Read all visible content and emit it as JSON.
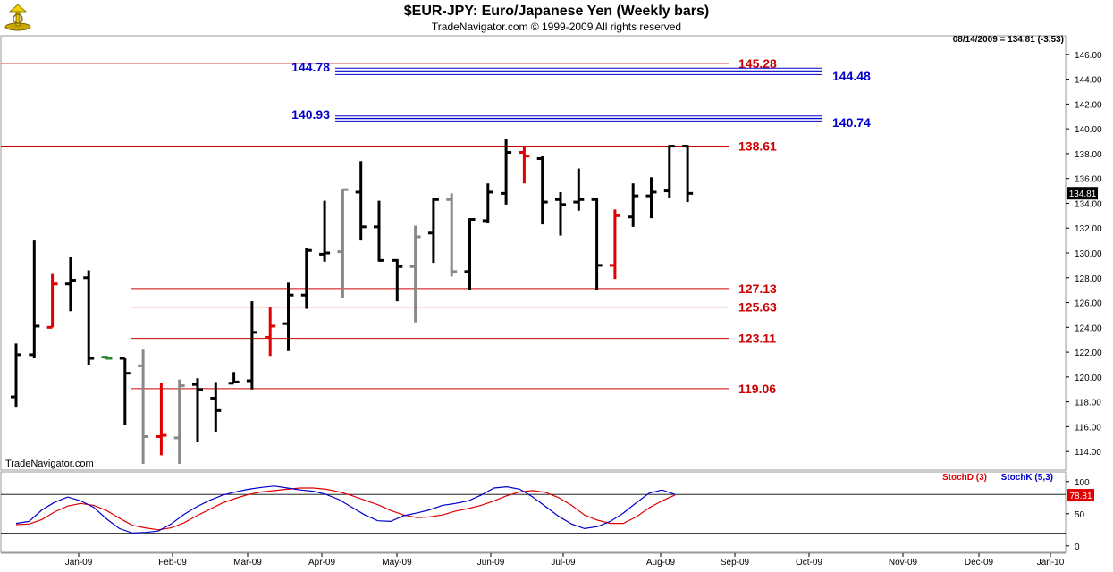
{
  "header": {
    "title": "$EUR-JPY:  Euro/Japanese Yen  (Weekly bars)",
    "subtitle": "TradeNavigator.com © 1999-2009 All rights reserved"
  },
  "watermark": "TradeNavigator.com",
  "colors": {
    "up_bar": "#000000",
    "neutral_bar": "#888888",
    "highlight_bar": "#e00000",
    "support_line": "#cc0000",
    "resistance_line": "#0000cc",
    "stoch_d": "#e00000",
    "stoch_k": "#0000cc"
  },
  "chart_data": [
    {
      "type": "bar",
      "subtype": "ohlc",
      "info_text": "08/14/2009 = 134.81 (-3.53)",
      "last_price_label": "134.81",
      "ylim": [
        112.5,
        147.5
      ],
      "yticks": [
        "114.00",
        "116.00",
        "118.00",
        "120.00",
        "122.00",
        "124.00",
        "126.00",
        "128.00",
        "130.00",
        "132.00",
        "134.00",
        "136.00",
        "138.00",
        "140.00",
        "142.00",
        "144.00",
        "146.00"
      ],
      "xticks": [
        "Jan-09",
        "Feb-09",
        "Mar-09",
        "Apr-09",
        "May-09",
        "Jun-09",
        "Jul-09",
        "Aug-09",
        "Sep-09",
        "Oct-09",
        "Nov-09",
        "Dec-09",
        "Jan-10"
      ],
      "bars": [
        {
          "o": 118.4,
          "h": 122.7,
          "l": 117.6,
          "c": 121.8,
          "col": "k"
        },
        {
          "o": 121.8,
          "h": 131.0,
          "l": 121.5,
          "c": 124.1,
          "col": "k"
        },
        {
          "o": 124.0,
          "h": 128.3,
          "l": 124.0,
          "c": 127.5,
          "col": "r"
        },
        {
          "o": 127.5,
          "h": 129.7,
          "l": 125.3,
          "c": 127.8,
          "col": "k"
        },
        {
          "o": 128.0,
          "h": 128.6,
          "l": 121.0,
          "c": 121.5,
          "col": "k"
        },
        {
          "o": 121.6,
          "h": 121.7,
          "l": 121.4,
          "c": 121.5,
          "col": "g"
        },
        {
          "o": 121.5,
          "h": 121.5,
          "l": 116.1,
          "c": 120.3,
          "col": "k"
        },
        {
          "o": 120.9,
          "h": 122.2,
          "l": 113.0,
          "c": 115.2,
          "col": "n"
        },
        {
          "o": 115.2,
          "h": 119.5,
          "l": 113.7,
          "c": 115.3,
          "col": "r"
        },
        {
          "o": 115.1,
          "h": 119.8,
          "l": 113.0,
          "c": 119.3,
          "col": "n"
        },
        {
          "o": 119.4,
          "h": 119.9,
          "l": 114.8,
          "c": 119.0,
          "col": "k"
        },
        {
          "o": 118.3,
          "h": 119.6,
          "l": 115.6,
          "c": 117.3,
          "col": "k"
        },
        {
          "o": 119.5,
          "h": 120.4,
          "l": 119.5,
          "c": 119.6,
          "col": "k"
        },
        {
          "o": 119.7,
          "h": 126.1,
          "l": 119.0,
          "c": 123.6,
          "col": "k"
        },
        {
          "o": 123.2,
          "h": 125.6,
          "l": 121.7,
          "c": 124.1,
          "col": "r"
        },
        {
          "o": 124.3,
          "h": 127.6,
          "l": 122.1,
          "c": 126.6,
          "col": "k"
        },
        {
          "o": 126.6,
          "h": 130.4,
          "l": 125.5,
          "c": 130.2,
          "col": "k"
        },
        {
          "o": 129.9,
          "h": 134.2,
          "l": 129.3,
          "c": 130.0,
          "col": "k"
        },
        {
          "o": 130.1,
          "h": 135.1,
          "l": 126.4,
          "c": 135.1,
          "col": "n"
        },
        {
          "o": 134.9,
          "h": 137.4,
          "l": 131.0,
          "c": 132.1,
          "col": "k"
        },
        {
          "o": 132.1,
          "h": 134.2,
          "l": 129.3,
          "c": 129.4,
          "col": "k"
        },
        {
          "o": 129.4,
          "h": 129.5,
          "l": 126.1,
          "c": 128.9,
          "col": "k"
        },
        {
          "o": 128.9,
          "h": 132.2,
          "l": 124.4,
          "c": 131.3,
          "col": "n"
        },
        {
          "o": 131.6,
          "h": 134.4,
          "l": 129.2,
          "c": 134.3,
          "col": "k"
        },
        {
          "o": 134.3,
          "h": 134.8,
          "l": 128.1,
          "c": 128.5,
          "col": "n"
        },
        {
          "o": 128.5,
          "h": 132.8,
          "l": 127.0,
          "c": 132.7,
          "col": "k"
        },
        {
          "o": 132.6,
          "h": 135.6,
          "l": 132.4,
          "c": 134.9,
          "col": "k"
        },
        {
          "o": 134.8,
          "h": 139.2,
          "l": 133.9,
          "c": 138.1,
          "col": "k"
        },
        {
          "o": 138.1,
          "h": 138.6,
          "l": 135.6,
          "c": 137.8,
          "col": "r"
        },
        {
          "o": 137.6,
          "h": 137.8,
          "l": 132.3,
          "c": 134.1,
          "col": "k"
        },
        {
          "o": 134.3,
          "h": 134.9,
          "l": 131.4,
          "c": 133.9,
          "col": "k"
        },
        {
          "o": 134.1,
          "h": 136.8,
          "l": 133.4,
          "c": 134.3,
          "col": "k"
        },
        {
          "o": 134.3,
          "h": 134.4,
          "l": 127.0,
          "c": 129.0,
          "col": "k"
        },
        {
          "o": 129.0,
          "h": 133.5,
          "l": 127.9,
          "c": 133.0,
          "col": "r"
        },
        {
          "o": 132.9,
          "h": 135.6,
          "l": 132.1,
          "c": 134.6,
          "col": "k"
        },
        {
          "o": 134.6,
          "h": 136.1,
          "l": 132.8,
          "c": 134.9,
          "col": "k"
        },
        {
          "o": 135.0,
          "h": 138.7,
          "l": 134.4,
          "c": 138.6,
          "col": "k"
        },
        {
          "o": 138.6,
          "h": 138.7,
          "l": 134.1,
          "c": 134.8,
          "col": "k"
        }
      ],
      "levels": [
        {
          "value": 145.28,
          "label": "145.28",
          "color": "red",
          "span": "full"
        },
        {
          "value": 144.78,
          "label": "144.78",
          "color": "blue",
          "side": "left"
        },
        {
          "value": 144.48,
          "label": "144.48",
          "color": "blue",
          "side": "right"
        },
        {
          "value": 140.93,
          "label": "140.93",
          "color": "blue",
          "side": "left"
        },
        {
          "value": 140.74,
          "label": "140.74",
          "color": "blue",
          "side": "right"
        },
        {
          "value": 138.61,
          "label": "138.61",
          "color": "red",
          "span": "full"
        },
        {
          "value": 127.13,
          "label": "127.13",
          "color": "red",
          "span": "partial"
        },
        {
          "value": 125.63,
          "label": "125.63",
          "color": "red",
          "span": "partial"
        },
        {
          "value": 123.11,
          "label": "123.11",
          "color": "red",
          "span": "partial"
        },
        {
          "value": 119.06,
          "label": "119.06",
          "color": "red",
          "span": "partial"
        }
      ]
    },
    {
      "type": "line",
      "ylim": [
        -10,
        115
      ],
      "yticks": [
        "100",
        "50",
        "0"
      ],
      "reference_lines": [
        80,
        20
      ],
      "last_value_label": "78.81",
      "series": [
        {
          "name": "StochD (3)",
          "color": "red",
          "values": [
            33,
            34,
            41,
            53,
            62,
            66,
            63,
            55,
            43,
            32,
            28,
            25,
            28,
            36,
            47,
            57,
            67,
            74,
            80,
            84,
            86,
            88,
            90,
            90,
            88,
            84,
            78,
            71,
            64,
            55,
            48,
            44,
            45,
            48,
            54,
            58,
            63,
            70,
            78,
            84,
            86,
            83,
            75,
            63,
            48,
            40,
            35,
            35,
            45,
            59,
            70,
            79
          ]
        },
        {
          "name": "StochK (5,3)",
          "color": "blue",
          "values": [
            35,
            38,
            56,
            68,
            76,
            70,
            60,
            42,
            27,
            20,
            21,
            23,
            34,
            49,
            61,
            71,
            79,
            84,
            88,
            91,
            93,
            90,
            87,
            85,
            80,
            72,
            60,
            48,
            39,
            38,
            47,
            51,
            56,
            63,
            66,
            70,
            79,
            90,
            92,
            88,
            76,
            61,
            46,
            34,
            27,
            30,
            38,
            51,
            67,
            82,
            87,
            80
          ]
        }
      ]
    }
  ]
}
